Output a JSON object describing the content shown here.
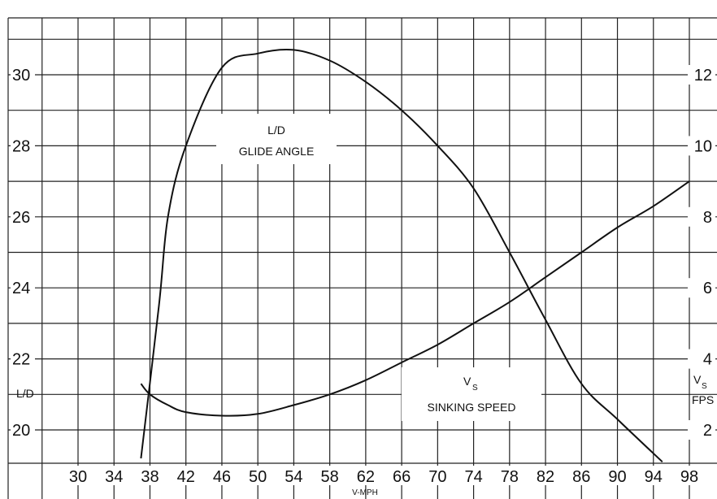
{
  "chart_data": {
    "type": "line",
    "x_ticks": [
      30,
      34,
      38,
      42,
      46,
      50,
      54,
      58,
      62,
      66,
      70,
      74,
      78,
      82,
      86,
      90,
      94,
      98
    ],
    "xlabel": "V-MPH",
    "xlim": [
      26,
      98
    ],
    "left_axis": {
      "ticks": [
        20,
        22,
        24,
        26,
        28,
        30
      ],
      "label": "L/D",
      "ylim": [
        19,
        31.5
      ]
    },
    "right_axis": {
      "ticks": [
        2,
        4,
        6,
        8,
        10,
        12
      ],
      "label_main": "V",
      "label_sub": "S",
      "label_unit": "FPS",
      "ylim": [
        1,
        13.5
      ]
    },
    "annotations": {
      "ld_line1": "L/D",
      "ld_line2": "GLIDE ANGLE",
      "vs_main": "V",
      "vs_sub": "S",
      "vs_line2": "SINKING SPEED"
    },
    "series": [
      {
        "axis": "left",
        "x": [
          37,
          39,
          40,
          42,
          46,
          50,
          54,
          58,
          62,
          66,
          70,
          74,
          78,
          82,
          86,
          90,
          95
        ],
        "y": [
          19.2,
          23.5,
          26.0,
          28.0,
          30.2,
          30.6,
          30.7,
          30.4,
          29.8,
          29.0,
          28.0,
          26.8,
          25.0,
          23.1,
          21.3,
          20.3,
          19.1
        ]
      },
      {
        "axis": "right",
        "x": [
          37,
          38,
          40,
          42,
          46,
          50,
          54,
          58,
          62,
          66,
          70,
          74,
          78,
          82,
          86,
          90,
          94,
          98
        ],
        "y": [
          3.3,
          3.0,
          2.7,
          2.5,
          2.4,
          2.45,
          2.7,
          3.0,
          3.4,
          3.9,
          4.4,
          5.0,
          5.6,
          6.3,
          7.0,
          7.7,
          8.3,
          9.0
        ]
      }
    ]
  }
}
